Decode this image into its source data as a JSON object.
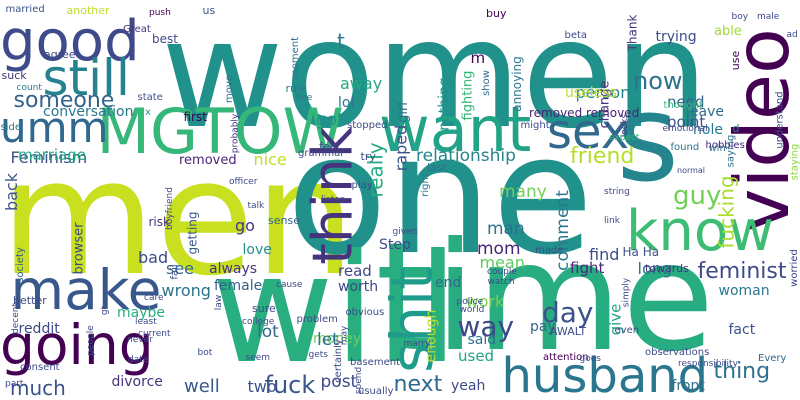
{
  "words": [
    {
      "text": "women",
      "color": "#21918c"
    },
    {
      "text": "men",
      "color": "#c8e020"
    },
    {
      "text": "one",
      "color": "#21918c"
    },
    {
      "text": "time",
      "color": "#27ad81"
    },
    {
      "text": "will",
      "color": "#29af7f"
    },
    {
      "text": "s",
      "color": "#25858e"
    },
    {
      "text": "video",
      "color": "#440154"
    },
    {
      "text": "good",
      "color": "#3e4a89"
    },
    {
      "text": "still",
      "color": "#26828e"
    },
    {
      "text": "want",
      "color": "#20a386"
    },
    {
      "text": "MGTOW",
      "color": "#35b779"
    },
    {
      "text": "umm",
      "color": "#31688e"
    },
    {
      "text": "make",
      "color": "#38588c"
    },
    {
      "text": "going",
      "color": "#440154"
    },
    {
      "text": "know",
      "color": "#3dbc74"
    },
    {
      "text": "husband",
      "color": "#2a768e"
    },
    {
      "text": "think",
      "color": "#46337e"
    },
    {
      "text": "sex",
      "color": "#31688e"
    },
    {
      "text": "shit",
      "color": "#1e9b8a"
    },
    {
      "text": "someone",
      "color": "#33638d"
    },
    {
      "text": "much",
      "color": "#3b528b"
    },
    {
      "text": "feminist",
      "color": "#3e4a89"
    },
    {
      "text": "fuck",
      "color": "#39568c"
    },
    {
      "text": "thing",
      "color": "#2c728e"
    },
    {
      "text": "next",
      "color": "#31688e"
    },
    {
      "text": "now",
      "color": "#2c728e"
    },
    {
      "text": "guy",
      "color": "#73d056"
    },
    {
      "text": "day",
      "color": "#3b528b"
    },
    {
      "text": "way",
      "color": "#3f4788"
    },
    {
      "text": "friend",
      "color": "#b5de2b"
    },
    {
      "text": "fucking",
      "color": "#aadc32"
    },
    {
      "text": "relationship",
      "color": "#25858e"
    },
    {
      "text": "Feminism",
      "color": "#3b528b"
    },
    {
      "text": "marriage",
      "color": "#22a884"
    },
    {
      "text": "removed",
      "color": "#482677"
    },
    {
      "text": "nice",
      "color": "#bddf26"
    },
    {
      "text": "got",
      "color": "#21918c"
    },
    {
      "text": "lol",
      "color": "#2a788e"
    },
    {
      "text": "away",
      "color": "#22a884"
    },
    {
      "text": "t",
      "color": "#2a788e"
    },
    {
      "text": "m",
      "color": "#440154"
    },
    {
      "text": "person",
      "color": "#25858e"
    },
    {
      "text": "need",
      "color": "#33638d"
    },
    {
      "text": "point",
      "color": "#3b528b"
    },
    {
      "text": "leave",
      "color": "#2e6e8e"
    },
    {
      "text": "hole",
      "color": "#2a788e"
    },
    {
      "text": "really",
      "color": "#25ac82"
    },
    {
      "text": "raped",
      "color": "#3b528b"
    },
    {
      "text": "many",
      "color": "#75d054"
    },
    {
      "text": "mom",
      "color": "#482475"
    },
    {
      "text": "mean",
      "color": "#5ec962"
    },
    {
      "text": "man",
      "color": "#2c728e"
    },
    {
      "text": "fight",
      "color": "#482878"
    },
    {
      "text": "long",
      "color": "#2c728e"
    },
    {
      "text": "woman",
      "color": "#2a788e"
    },
    {
      "text": "love",
      "color": "#21918c"
    },
    {
      "text": "see",
      "color": "#31688e"
    },
    {
      "text": "always",
      "color": "#46327e"
    },
    {
      "text": "wrong",
      "color": "#2c728e"
    },
    {
      "text": "female",
      "color": "#33638d"
    },
    {
      "text": "reddit",
      "color": "#3f4788"
    },
    {
      "text": "maybe",
      "color": "#28ae80"
    },
    {
      "text": "well",
      "color": "#38598c"
    },
    {
      "text": "two",
      "color": "#3b528b"
    },
    {
      "text": "post",
      "color": "#3e4989"
    },
    {
      "text": "divorce",
      "color": "#46337e"
    },
    {
      "text": "yeah",
      "color": "#3e4a89"
    },
    {
      "text": "front",
      "color": "#2e6e8e"
    },
    {
      "text": "fact",
      "color": "#3b528b"
    },
    {
      "text": "said",
      "color": "#2c728e"
    },
    {
      "text": "pay",
      "color": "#33638d"
    },
    {
      "text": "used",
      "color": "#20a386"
    },
    {
      "text": "money",
      "color": "#6ccd5a"
    },
    {
      "text": "let",
      "color": "#2c728e"
    },
    {
      "text": "lot",
      "color": "#31688e"
    },
    {
      "text": "bad",
      "color": "#3e4a89"
    },
    {
      "text": "go",
      "color": "#453781"
    },
    {
      "text": "sense",
      "color": "#33638d"
    },
    {
      "text": "getting",
      "color": "#38598c"
    },
    {
      "text": "read",
      "color": "#3f4788"
    },
    {
      "text": "worth",
      "color": "#404688"
    },
    {
      "text": "end",
      "color": "#31688e"
    },
    {
      "text": "work",
      "color": "#7ad151"
    },
    {
      "text": "comment",
      "color": "#2a788e"
    },
    {
      "text": "find",
      "color": "#3e4c8a"
    },
    {
      "text": "give",
      "color": "#20a386"
    },
    {
      "text": "enough",
      "color": "#bddf26"
    },
    {
      "text": "back",
      "color": "#3b528b"
    },
    {
      "text": "conversation",
      "color": "#2a788e"
    },
    {
      "text": "browser",
      "color": "#3e4a89"
    },
    {
      "text": "society",
      "color": "#365c8d"
    },
    {
      "text": "risk",
      "color": "#453581"
    },
    {
      "text": "nothing",
      "color": "#21918c"
    },
    {
      "text": "girl",
      "color": "#2e6e8e"
    },
    {
      "text": "fighting",
      "color": "#35b779"
    },
    {
      "text": "change",
      "color": "#46337e"
    },
    {
      "text": "useless",
      "color": "#bddf26"
    },
    {
      "text": "trying",
      "color": "#3e4a89"
    },
    {
      "text": "able",
      "color": "#a0da39"
    },
    {
      "text": "Thank",
      "color": "#46327e"
    },
    {
      "text": "Step",
      "color": "#3e4a89"
    },
    {
      "text": "Ha Ha",
      "color": "#3b528b"
    },
    {
      "text": "towards",
      "color": "#46337e"
    },
    {
      "text": "attention",
      "color": "#440154"
    },
    {
      "text": "observations",
      "color": "#3e4a89"
    },
    {
      "text": "Every",
      "color": "#31688e"
    },
    {
      "text": "removed removed",
      "color": "#482475"
    },
    {
      "text": "hobbies",
      "color": "#482475"
    },
    {
      "text": "saying",
      "color": "#2e6e8e"
    },
    {
      "text": "worried",
      "color": "#404688"
    },
    {
      "text": "staying",
      "color": "#8fd744"
    },
    {
      "text": "understand",
      "color": "#3e4a89"
    },
    {
      "text": "emotional",
      "color": "#3e4a89"
    },
    {
      "text": "found",
      "color": "#2a768e"
    },
    {
      "text": "win",
      "color": "#2c728e"
    },
    {
      "text": "thought",
      "color": "#35b779"
    },
    {
      "text": "looks",
      "color": "#46337e"
    },
    {
      "text": "expect",
      "color": "#35b779"
    },
    {
      "text": "d",
      "color": "#2a788e"
    },
    {
      "text": "x",
      "color": "#1fa187"
    },
    {
      "text": "married",
      "color": "#3b528b"
    },
    {
      "text": "another",
      "color": "#bddf26"
    },
    {
      "text": "push",
      "color": "#440154"
    },
    {
      "text": "us",
      "color": "#39568c"
    },
    {
      "text": "Great",
      "color": "#46337e"
    },
    {
      "text": "best",
      "color": "#3e4a89"
    },
    {
      "text": "agree",
      "color": "#3f4788"
    },
    {
      "text": "move",
      "color": "#2c728e"
    },
    {
      "text": "moment",
      "color": "#2c728e"
    },
    {
      "text": "rule",
      "color": "#2a788e"
    },
    {
      "text": "line",
      "color": "#2c728e"
    },
    {
      "text": "first",
      "color": "#440154"
    },
    {
      "text": "state",
      "color": "#3b528b"
    },
    {
      "text": "suck",
      "color": "#46337e"
    },
    {
      "text": "count",
      "color": "#2a788e"
    },
    {
      "text": "side",
      "color": "#2a788e"
    },
    {
      "text": "probably",
      "color": "#46337e"
    },
    {
      "text": "feel",
      "color": "#3e4a89"
    },
    {
      "text": "stopped",
      "color": "#3e4a89"
    },
    {
      "text": "try",
      "color": "#3e4a89"
    },
    {
      "text": "grammar",
      "color": "#3e4a89"
    },
    {
      "text": "last",
      "color": "#2c728e"
    },
    {
      "text": "right",
      "color": "#2a788e"
    },
    {
      "text": "show",
      "color": "#31688e"
    },
    {
      "text": "annoying",
      "color": "#2a788e"
    },
    {
      "text": "beta",
      "color": "#3e4a89"
    },
    {
      "text": "might",
      "color": "#3e4a89"
    },
    {
      "text": "buy",
      "color": "#440154"
    },
    {
      "text": "use",
      "color": "#440154"
    },
    {
      "text": "boy",
      "color": "#3e4a89"
    },
    {
      "text": "male",
      "color": "#3e4a89"
    },
    {
      "text": "ad",
      "color": "#3e4a89"
    },
    {
      "text": "string",
      "color": "#3e4a89"
    },
    {
      "text": "normal",
      "color": "#3e4a89"
    },
    {
      "text": "link",
      "color": "#3e4a89"
    },
    {
      "text": "couple",
      "color": "#3e4a89"
    },
    {
      "text": "watch",
      "color": "#3e4a89"
    },
    {
      "text": "made",
      "color": "#3e4a89"
    },
    {
      "text": "simply",
      "color": "#3e4a89"
    },
    {
      "text": "play",
      "color": "#3e4a89"
    },
    {
      "text": "officer",
      "color": "#3e4a89"
    },
    {
      "text": "talk",
      "color": "#3e4a89"
    },
    {
      "text": "listen",
      "color": "#3e4a89"
    },
    {
      "text": "given",
      "color": "#3e4a89"
    },
    {
      "text": "boyfriend",
      "color": "#3e4a89"
    },
    {
      "text": "fail",
      "color": "#3e4a89"
    },
    {
      "text": "care",
      "color": "#3e4a89"
    },
    {
      "text": "least",
      "color": "#3e4a89"
    },
    {
      "text": "never",
      "color": "#3e4a89"
    },
    {
      "text": "law",
      "color": "#3e4a89"
    },
    {
      "text": "college",
      "color": "#3e4a89"
    },
    {
      "text": "cause",
      "color": "#3e4a89"
    },
    {
      "text": "sure",
      "color": "#3e4a89"
    },
    {
      "text": "better",
      "color": "#3e4a89"
    },
    {
      "text": "decent",
      "color": "#3e4a89"
    },
    {
      "text": "gt",
      "color": "#3e4a89"
    },
    {
      "text": "current",
      "color": "#3e4a89"
    },
    {
      "text": "people",
      "color": "#3e4a89"
    },
    {
      "text": "consent",
      "color": "#3e4a89"
    },
    {
      "text": "date",
      "color": "#3e4a89"
    },
    {
      "text": "bot",
      "color": "#3e4a89"
    },
    {
      "text": "seem",
      "color": "#3e4a89"
    },
    {
      "text": "part",
      "color": "#3e4a89"
    },
    {
      "text": "basement",
      "color": "#3e4a89"
    },
    {
      "text": "problem",
      "color": "#3e4a89"
    },
    {
      "text": "gets",
      "color": "#3e4a89"
    },
    {
      "text": "certainly",
      "color": "#3e4a89"
    },
    {
      "text": "may",
      "color": "#3e4a89"
    },
    {
      "text": "spend",
      "color": "#3e4a89"
    },
    {
      "text": "marry",
      "color": "#3e4a89"
    },
    {
      "text": "obvious",
      "color": "#3e4a89"
    },
    {
      "text": "usually",
      "color": "#3e4a89"
    },
    {
      "text": "police",
      "color": "#3e4a89"
    },
    {
      "text": "world",
      "color": "#3e4a89"
    },
    {
      "text": "AWALT",
      "color": "#3e4a89"
    },
    {
      "text": "goes",
      "color": "#3e4a89"
    },
    {
      "text": "even",
      "color": "#3e4a89"
    },
    {
      "text": "responsibility",
      "color": "#3e4a89"
    }
  ]
}
